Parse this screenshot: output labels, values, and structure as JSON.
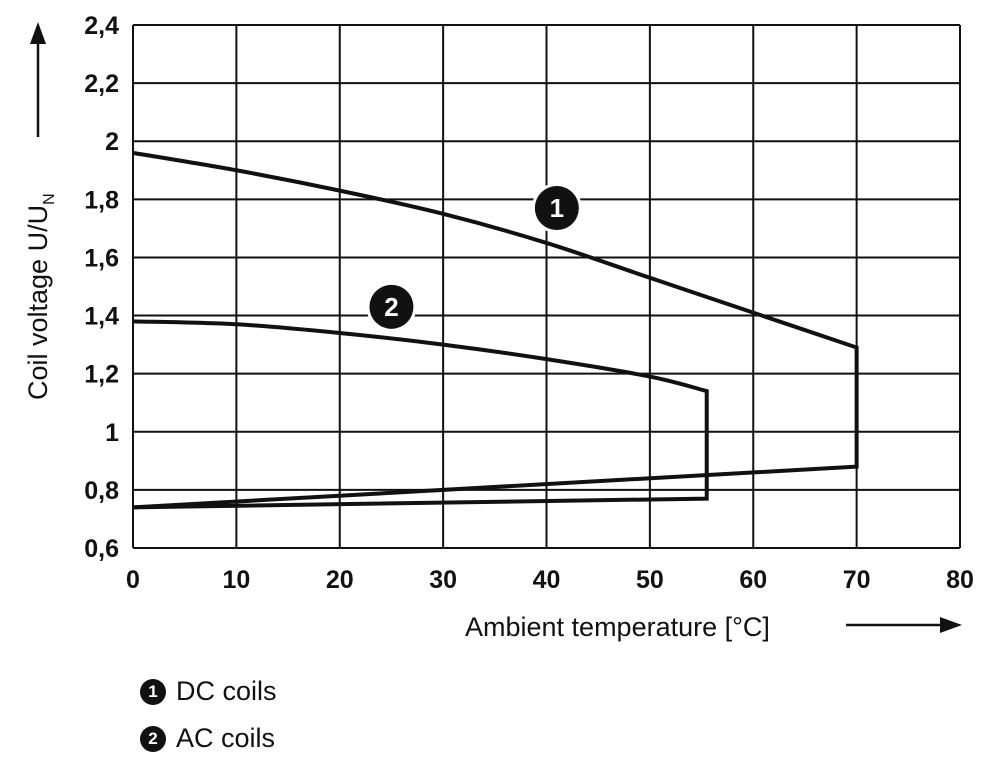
{
  "chart_data": {
    "type": "line",
    "xlabel": "Ambient temperature [°C]",
    "ylabel": "Coil voltage U/U",
    "ylabel_subscript": "N",
    "xlim": [
      0,
      80
    ],
    "ylim": [
      0.6,
      2.4
    ],
    "x_ticks": [
      "0",
      "10",
      "20",
      "30",
      "40",
      "50",
      "60",
      "70",
      "80"
    ],
    "y_ticks": [
      "0,6",
      "0,8",
      "1",
      "1,2",
      "1,4",
      "1,6",
      "1,8",
      "2",
      "2,2",
      "2,4"
    ],
    "grid": true,
    "series": [
      {
        "name": "DC coils",
        "marker": "1",
        "marker_pos": {
          "x": 41,
          "y": 1.77
        },
        "upper": {
          "x": [
            0,
            10,
            20,
            30,
            40,
            50,
            60,
            70
          ],
          "y": [
            1.96,
            1.9,
            1.83,
            1.75,
            1.65,
            1.53,
            1.41,
            1.29
          ]
        },
        "lower": {
          "x": [
            0,
            70
          ],
          "y": [
            0.74,
            0.88
          ]
        }
      },
      {
        "name": "AC coils",
        "marker": "2",
        "marker_pos": {
          "x": 25,
          "y": 1.43
        },
        "upper": {
          "x": [
            0,
            10,
            20,
            30,
            40,
            50,
            55.5
          ],
          "y": [
            1.38,
            1.37,
            1.34,
            1.3,
            1.25,
            1.19,
            1.14
          ]
        },
        "lower": {
          "x": [
            0,
            55.5
          ],
          "y": [
            0.74,
            0.77
          ]
        }
      }
    ]
  },
  "legend": [
    {
      "marker": "1",
      "label": "DC coils"
    },
    {
      "marker": "2",
      "label": "AC coils"
    }
  ]
}
